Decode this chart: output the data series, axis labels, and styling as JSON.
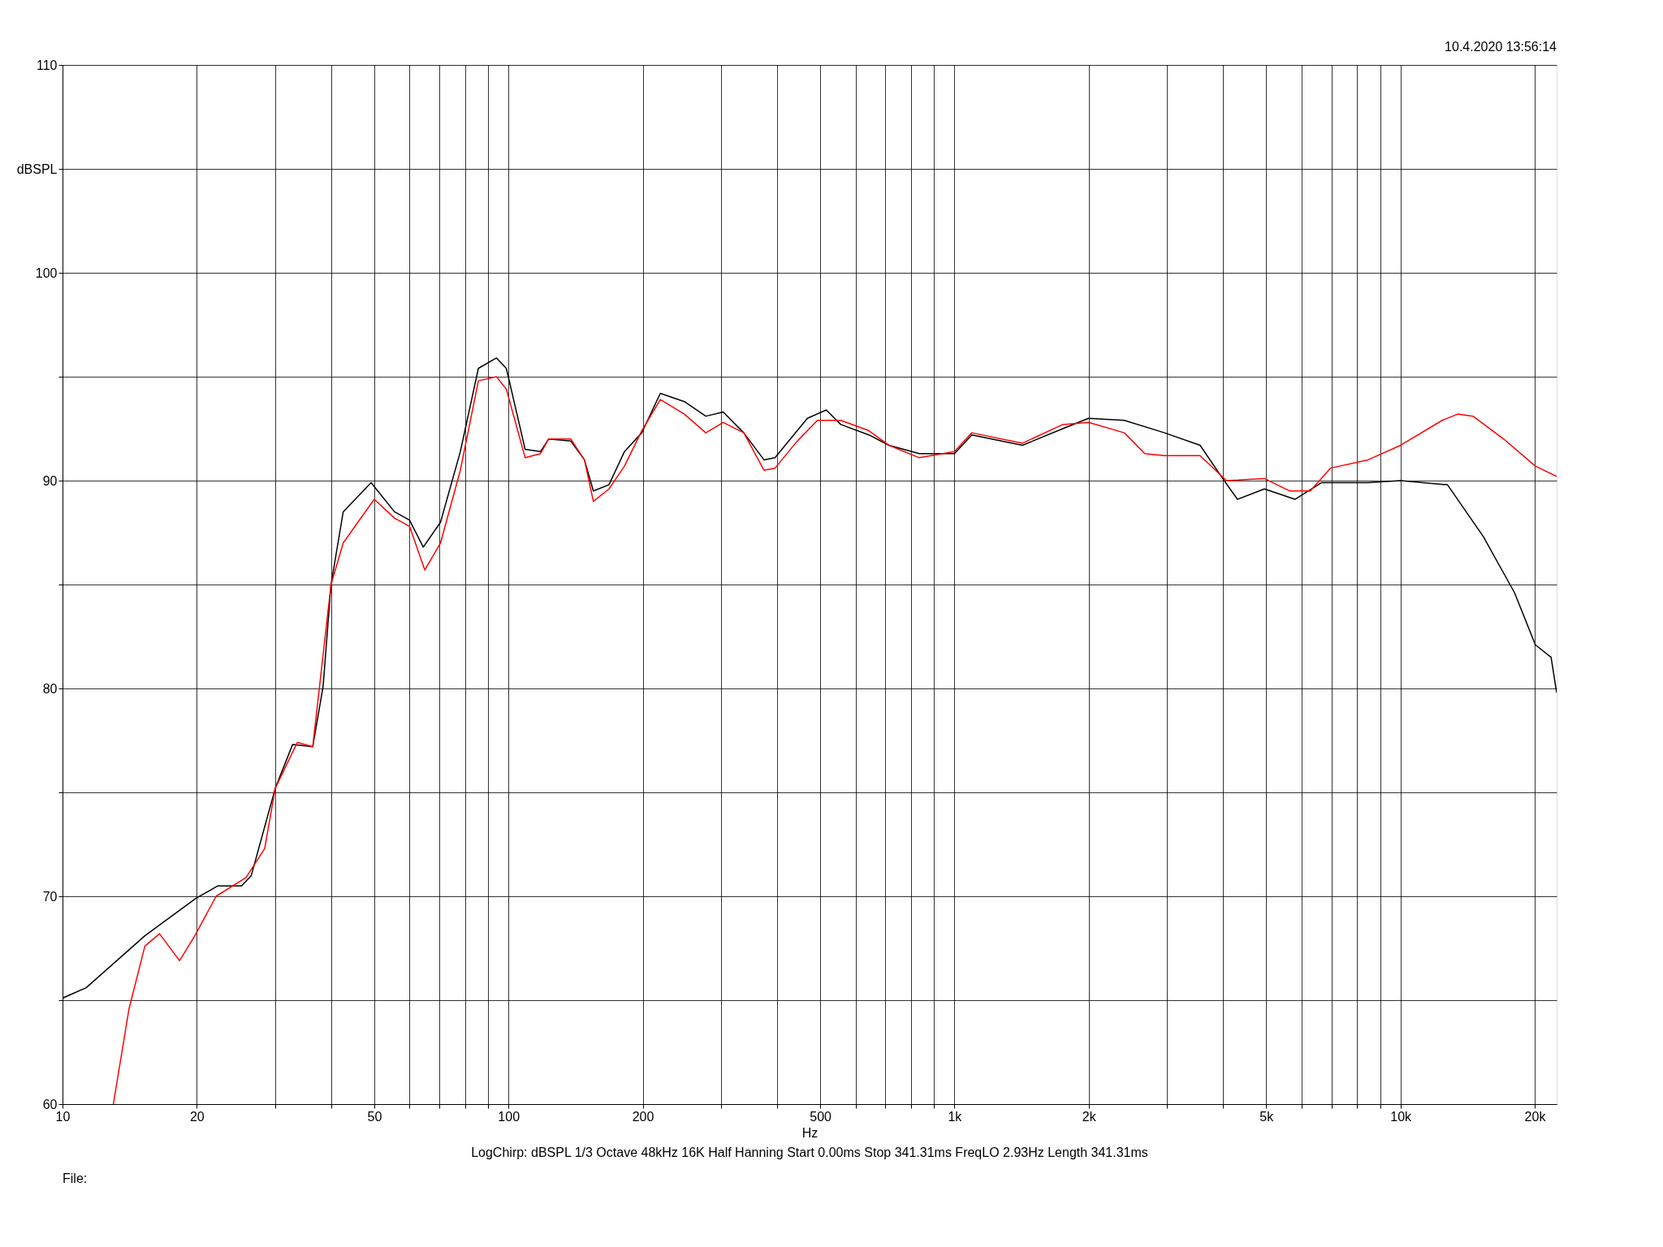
{
  "chart_data": {
    "type": "line",
    "xlabel": "Hz",
    "log": "x",
    "grid": true,
    "xlim": [
      10,
      22400
    ],
    "ylim": [
      60,
      110
    ],
    "xticks": [
      10,
      {
        "value": 20,
        "label": "20"
      },
      {
        "value": 30,
        "label": null
      },
      {
        "value": 40,
        "label": null
      },
      50,
      {
        "value": 60,
        "label": null
      },
      {
        "value": 70,
        "label": null
      },
      {
        "value": 80,
        "label": null
      },
      {
        "value": 90,
        "label": null
      },
      100,
      200,
      {
        "value": 300,
        "label": null
      },
      {
        "value": 400,
        "label": null
      },
      500,
      {
        "value": 600,
        "label": null
      },
      {
        "value": 700,
        "label": null
      },
      {
        "value": 800,
        "label": null
      },
      {
        "value": 900,
        "label": null
      },
      {
        "value": 1000,
        "label": "1k"
      },
      {
        "value": 2000,
        "label": "2k"
      },
      {
        "value": 3000,
        "label": null
      },
      {
        "value": 4000,
        "label": null
      },
      {
        "value": 5000,
        "label": "5k"
      },
      {
        "value": 6000,
        "label": null
      },
      {
        "value": 7000,
        "label": null
      },
      {
        "value": 8000,
        "label": null
      },
      {
        "value": 9000,
        "label": null
      },
      {
        "value": 10000,
        "label": "10k"
      },
      {
        "value": 20000,
        "label": "20k"
      }
    ],
    "yticks": [
      60,
      {
        "value": 65,
        "label": null
      },
      70,
      {
        "value": 75,
        "label": null
      },
      80,
      {
        "value": 85,
        "label": null
      },
      90,
      {
        "value": 95,
        "label": null
      },
      100,
      {
        "value": 105,
        "label": "dBSPL"
      },
      110
    ],
    "annotations": [
      "10.4.2020 13:56:14",
      "LogChirp:  dBSPL  1/3 Octave  48kHz  16K  Half Hanning  Start 0.00ms  Stop 341.31ms  FreqLO 2.93Hz  Length 341.31ms",
      "File:"
    ],
    "series": [
      {
        "color": "#000000",
        "x": [
          10,
          11.3,
          15.3,
          19.9,
          22.3,
          25.2,
          26.5,
          30,
          32.8,
          36.4,
          38.4,
          40,
          42.6,
          49.2,
          55.5,
          60,
          64.4,
          70.4,
          78,
          85.6,
          94,
          98.9,
          109,
          118,
          123,
          138,
          148,
          155,
          168,
          182,
          199,
          219,
          248,
          277,
          303,
          337,
          374,
          396,
          444,
          468,
          516,
          556,
          643,
          713,
          834,
          1000,
          1094,
          1421,
          1750,
          1998,
          2403,
          2959,
          3555,
          3965,
          4310,
          4954,
          5802,
          6649,
          8463,
          10010,
          12750,
          15350,
          18030,
          20070,
          21770,
          22400
        ],
        "values": [
          65.1,
          65.6,
          68.1,
          69.9,
          70.5,
          70.5,
          71.0,
          75.2,
          77.3,
          77.2,
          80.1,
          85.0,
          88.5,
          89.9,
          88.5,
          88.1,
          86.8,
          88.0,
          91.4,
          95.4,
          95.9,
          95.4,
          91.5,
          91.4,
          92.0,
          91.9,
          91.0,
          89.5,
          89.8,
          91.4,
          92.3,
          94.2,
          93.8,
          93.1,
          93.3,
          92.3,
          91.0,
          91.1,
          92.4,
          93.0,
          93.4,
          92.7,
          92.2,
          91.7,
          91.3,
          91.3,
          92.2,
          91.7,
          92.5,
          93.0,
          92.9,
          92.3,
          91.7,
          90.2,
          89.1,
          89.6,
          89.1,
          89.9,
          89.9,
          90.0,
          89.8,
          87.3,
          84.6,
          82.1,
          81.5,
          79.8
        ]
      },
      {
        "color": "#ff0000",
        "x": [
          13.0,
          14.1,
          15.3,
          16.5,
          18.3,
          19.8,
          22.1,
          25.8,
          28.4,
          30,
          33.6,
          36.4,
          40,
          42.6,
          50,
          55.5,
          60,
          64.9,
          70.4,
          78,
          85.6,
          94,
          98.9,
          109,
          118,
          123,
          138,
          148,
          155,
          168,
          182,
          199,
          219,
          248,
          277,
          303,
          337,
          374,
          396,
          444,
          493,
          556,
          643,
          713,
          834,
          1000,
          1094,
          1421,
          1750,
          1998,
          2403,
          2671,
          2959,
          3555,
          4072,
          4954,
          5649,
          6276,
          6970,
          8463,
          10010,
          12410,
          13440,
          14550,
          17040,
          20070,
          22400
        ],
        "values": [
          60,
          64.6,
          67.6,
          68.2,
          66.9,
          68.1,
          70.0,
          70.9,
          72.3,
          75.2,
          77.4,
          77.2,
          85.0,
          87.0,
          89.1,
          88.2,
          87.8,
          85.7,
          87.0,
          90.5,
          94.8,
          95.0,
          94.4,
          91.1,
          91.3,
          92.0,
          92.0,
          91.0,
          89.0,
          89.6,
          90.7,
          92.4,
          93.9,
          93.2,
          92.3,
          92.8,
          92.3,
          90.5,
          90.6,
          91.9,
          92.9,
          92.9,
          92.4,
          91.7,
          91.1,
          91.4,
          92.3,
          91.8,
          92.7,
          92.8,
          92.3,
          91.3,
          91.2,
          91.2,
          90.0,
          90.1,
          89.5,
          89.5,
          90.6,
          91.0,
          91.7,
          92.9,
          93.2,
          93.1,
          92.0,
          90.7,
          90.2
        ]
      }
    ]
  }
}
